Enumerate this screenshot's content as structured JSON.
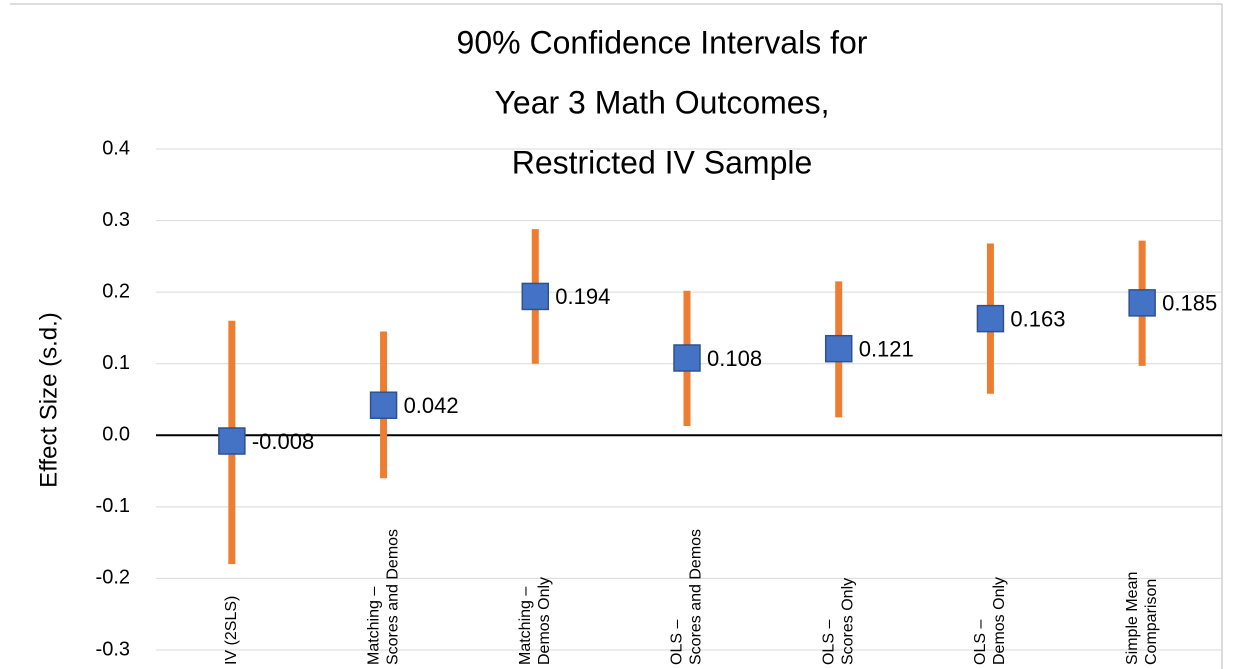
{
  "chart_data": {
    "type": "errorbar",
    "title": [
      "90% Confidence Intervals for",
      "Year 3 Math Outcomes,",
      "Restricted IV Sample"
    ],
    "y_label": "Effect Size (s.d.)",
    "categories": [
      [
        "IV (2SLS)"
      ],
      [
        "Matching –",
        "Scores and Demos"
      ],
      [
        "Matching –",
        "Demos Only"
      ],
      [
        "OLS –",
        "Scores and Demos"
      ],
      [
        "OLS –",
        "Scores Only"
      ],
      [
        "OLS –",
        "Demos Only"
      ],
      [
        "Simple Mean",
        "Comparison"
      ]
    ],
    "values": [
      -0.008,
      0.042,
      0.194,
      0.108,
      0.121,
      0.163,
      0.185
    ],
    "lower": [
      -0.18,
      -0.06,
      0.1,
      0.013,
      0.025,
      0.058,
      0.097
    ],
    "upper": [
      0.16,
      0.145,
      0.288,
      0.202,
      0.215,
      0.268,
      0.272
    ],
    "marker_color": "#4472c4",
    "bar_color": "#ed7d31",
    "ylim": [
      -0.3,
      0.4
    ],
    "yticks": [
      -0.3,
      -0.2,
      -0.1,
      {
        "value": 0,
        "label": "0.0"
      },
      0.1,
      0.2,
      0.3,
      0.4
    ],
    "grid": true
  }
}
